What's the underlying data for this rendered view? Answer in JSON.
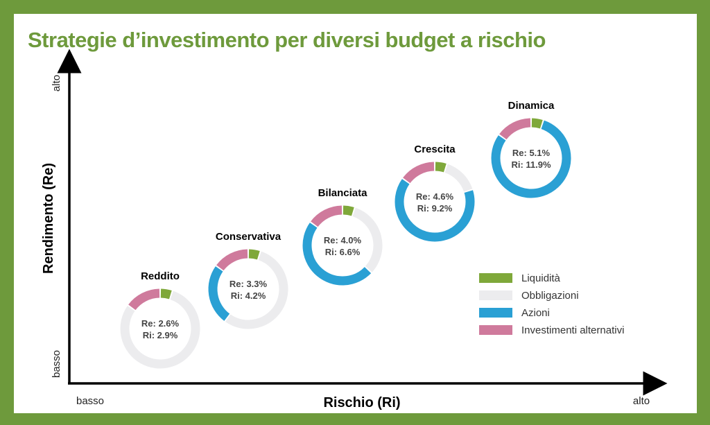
{
  "chart_data": {
    "type": "donut-scatter",
    "title": "Strategie d’investimento per diversi budget a rischio",
    "xlabel": "Rischio (Ri)",
    "ylabel": "Rendimento (Re)",
    "x_ticks": {
      "low": "basso",
      "high": "alto"
    },
    "y_ticks": {
      "low": "basso",
      "high": "alto"
    },
    "legend_position": "right",
    "categories": [
      "Liquidità",
      "Obbligazioni",
      "Azioni",
      "Investimenti alternativi"
    ],
    "colors": [
      "#7fa83a",
      "#ececee",
      "#2aa0d4",
      "#cf7a9c"
    ],
    "strategies": [
      {
        "name": "Reddito",
        "re_label": "Re: 2.6%",
        "ri_label": "Ri: 2.9%",
        "re": 2.6,
        "ri": 2.9,
        "allocation": [
          5,
          80,
          0,
          15
        ]
      },
      {
        "name": "Conservativa",
        "re_label": "Re: 3.3%",
        "ri_label": "Ri: 4.2%",
        "re": 3.3,
        "ri": 4.2,
        "allocation": [
          5,
          55,
          25,
          15
        ]
      },
      {
        "name": "Bilanciata",
        "re_label": "Re: 4.0%",
        "ri_label": "Ri: 6.6%",
        "re": 4.0,
        "ri": 6.6,
        "allocation": [
          5,
          32,
          48,
          15
        ]
      },
      {
        "name": "Crescita",
        "re_label": "Re: 4.6%",
        "ri_label": "Ri: 9.2%",
        "re": 4.6,
        "ri": 9.2,
        "allocation": [
          5,
          15,
          65,
          15
        ]
      },
      {
        "name": "Dinamica",
        "re_label": "Re: 5.1%",
        "ri_label": "Ri: 11.9%",
        "re": 5.1,
        "ri": 11.9,
        "allocation": [
          5,
          0,
          80,
          15
        ]
      }
    ]
  }
}
